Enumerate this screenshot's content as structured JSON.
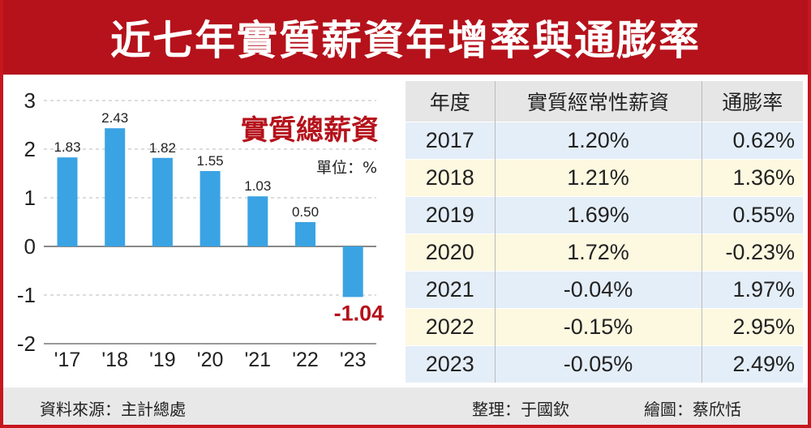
{
  "title": "近七年實質薪資年增率與通膨率",
  "chart_data": {
    "type": "bar",
    "title": "實質總薪資",
    "unit_label": "單位：%",
    "categories": [
      "'17",
      "'18",
      "'19",
      "'20",
      "'21",
      "'22",
      "'23"
    ],
    "values": [
      1.83,
      2.43,
      1.82,
      1.55,
      1.03,
      0.5,
      -1.04
    ],
    "value_labels": [
      "1.83",
      "2.43",
      "1.82",
      "1.55",
      "1.03",
      "0.50",
      "-1.04"
    ],
    "ylim": [
      -2,
      3
    ],
    "yticks": [
      "3",
      "2",
      "1",
      "0",
      "-1",
      "-2"
    ],
    "bar_color": "#3aa3e3",
    "negative_label_color": "#b5121b"
  },
  "table": {
    "headers": [
      "年度",
      "實質經常性薪資",
      "通膨率"
    ],
    "rows": [
      [
        "2017",
        "1.20%",
        "0.62%"
      ],
      [
        "2018",
        "1.21%",
        "1.36%"
      ],
      [
        "2019",
        "1.69%",
        "0.55%"
      ],
      [
        "2020",
        "1.72%",
        "-0.23%"
      ],
      [
        "2021",
        "-0.04%",
        "1.97%"
      ],
      [
        "2022",
        "-0.15%",
        "2.95%"
      ],
      [
        "2023",
        "-0.05%",
        "2.49%"
      ]
    ]
  },
  "footer": {
    "source": "資料來源：主計總處",
    "editor": "整理：于國欽",
    "illustrator": "繪圖：蔡欣恬"
  }
}
